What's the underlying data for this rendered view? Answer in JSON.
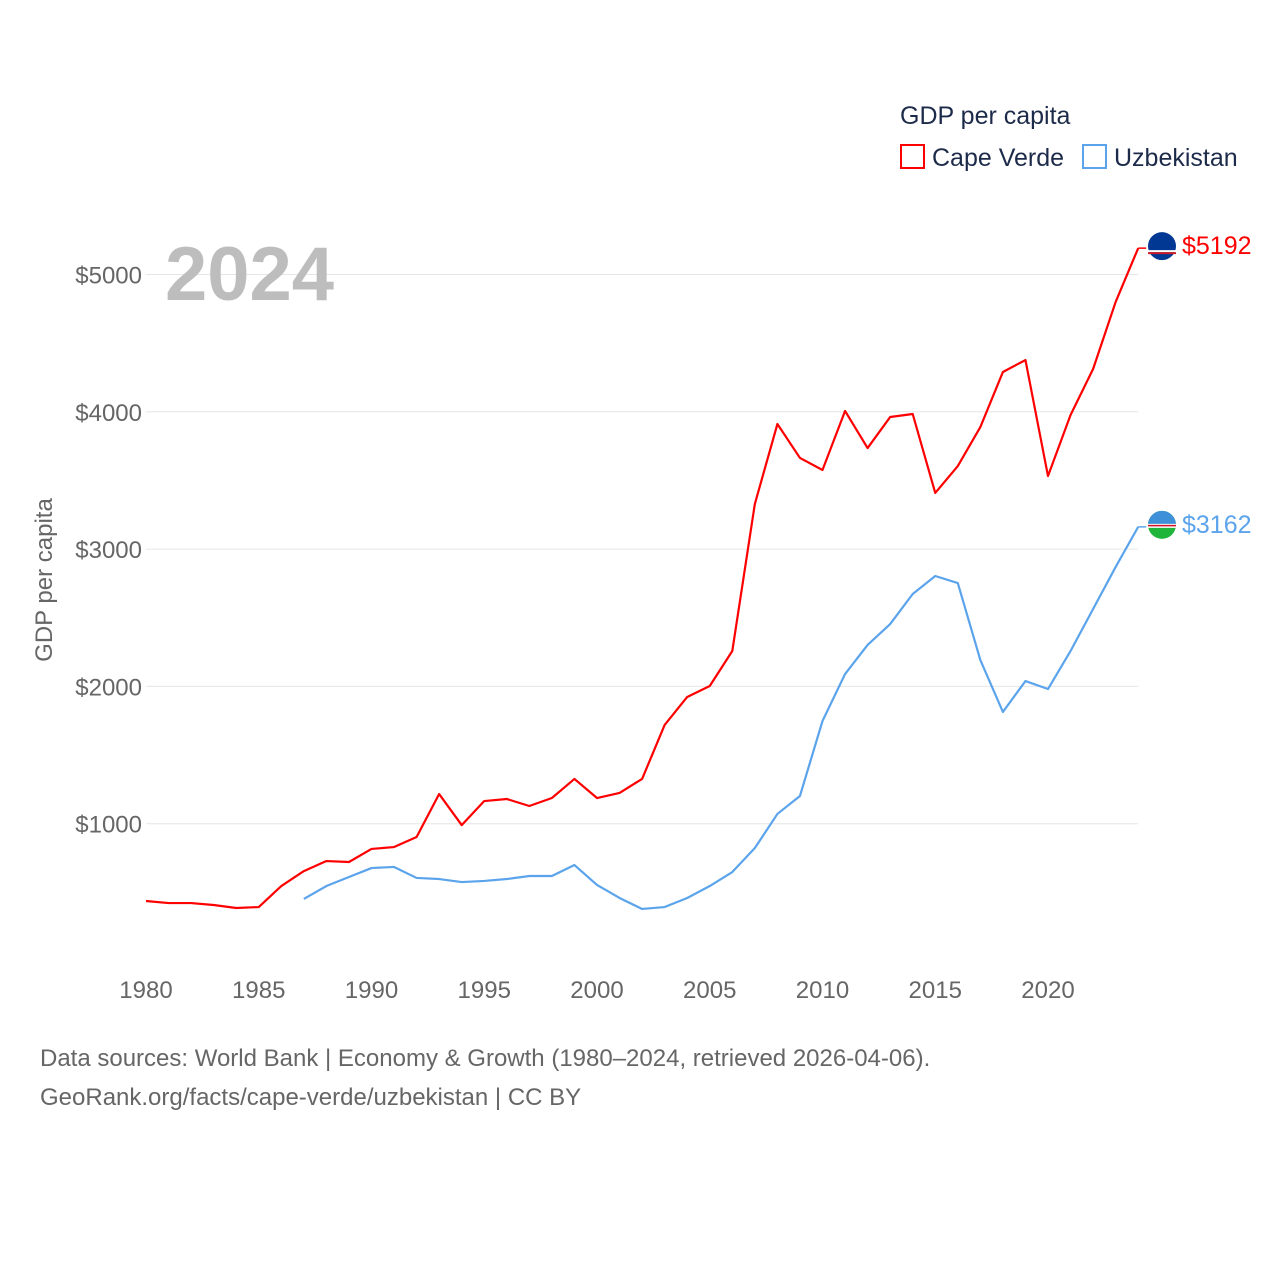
{
  "chart_data": {
    "type": "line",
    "title": "",
    "year_label": "2024",
    "xlabel": "",
    "ylabel": "GDP per capita",
    "legend_title": "GDP per capita",
    "legend_position": "top-right",
    "xlim": [
      1980,
      2024
    ],
    "ylim": [
      0,
      5500
    ],
    "x_ticks": [
      1980,
      1985,
      1990,
      1995,
      2000,
      2005,
      2010,
      2015,
      2020
    ],
    "y_ticks": [
      1000,
      2000,
      3000,
      4000,
      5000
    ],
    "y_tick_labels": [
      "$1000",
      "$2000",
      "$3000",
      "$4000",
      "$5000"
    ],
    "grid": true,
    "series": [
      {
        "name": "Cape Verde",
        "color": "#ff0000",
        "end_label": "$5192",
        "start_year": 1980,
        "values": [
          437,
          422,
          422,
          408,
          386,
          393,
          546,
          655,
          728,
          721,
          816,
          830,
          903,
          1216,
          990,
          1165,
          1180,
          1129,
          1187,
          1326,
          1187,
          1224,
          1326,
          1719,
          1923,
          2003,
          2258,
          3329,
          3911,
          3664,
          3576,
          4006,
          3736,
          3962,
          3984,
          3409,
          3605,
          3889,
          4290,
          4377,
          3532,
          3977,
          4312,
          4800,
          5192
        ]
      },
      {
        "name": "Uzbekistan",
        "color": "#5ba4ec",
        "end_label": "$3162",
        "start_year": 1987,
        "values": [
          452,
          546,
          612,
          677,
          685,
          605,
          597,
          575,
          583,
          597,
          619,
          619,
          699,
          554,
          459,
          379,
          393,
          459,
          546,
          648,
          823,
          1071,
          1202,
          1748,
          2090,
          2302,
          2454,
          2673,
          2804,
          2753,
          2192,
          1814,
          2039,
          1981,
          2258,
          2564,
          2870,
          3162
        ]
      }
    ]
  },
  "footer": {
    "line1": "Data sources: World Bank | Economy & Growth (1980–2024, retrieved 2026-04-06).",
    "line2": "GeoRank.org/facts/cape-verde/uzbekistan | CC BY"
  }
}
